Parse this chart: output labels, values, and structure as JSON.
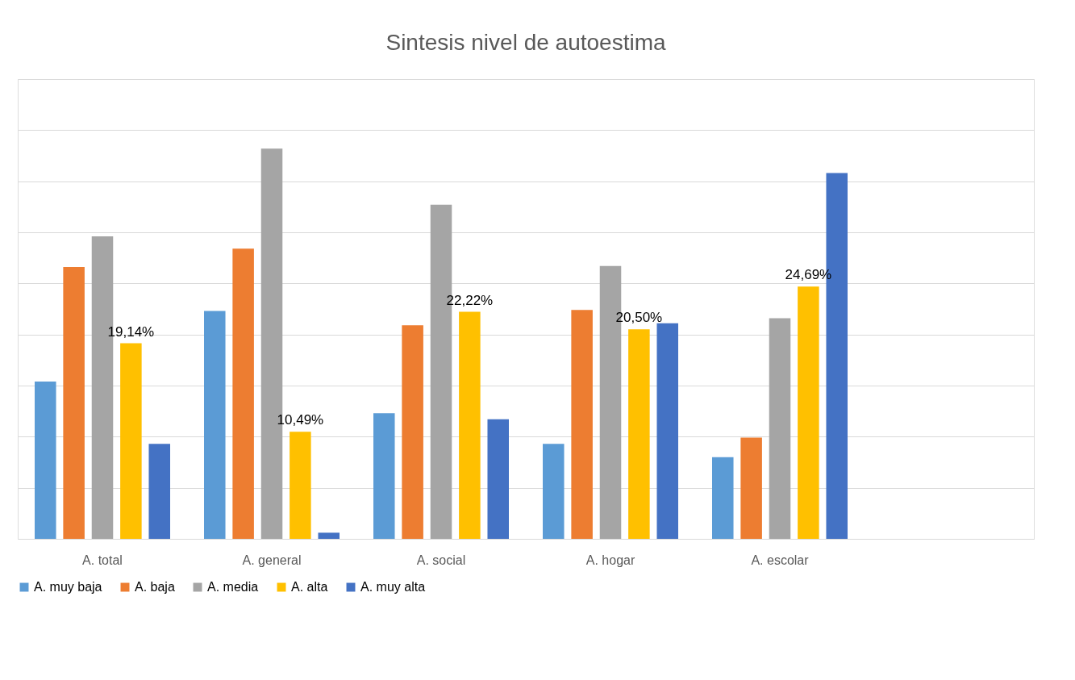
{
  "chart_data": {
    "type": "bar",
    "title": "Sintesis nivel de autoestima",
    "categories": [
      "A. total",
      "A. general",
      "A. social",
      "A. hogar",
      "A. escolar",
      null
    ],
    "series": [
      {
        "name": "A. muy baja",
        "color": "#5b9bd5",
        "values": [
          15.4,
          22.3,
          12.3,
          9.3,
          8.0,
          null
        ]
      },
      {
        "name": "A. baja",
        "color": "#ed7d31",
        "values": [
          26.6,
          28.4,
          20.9,
          22.4,
          9.9,
          null
        ]
      },
      {
        "name": "A. media",
        "color": "#a5a5a5",
        "values": [
          29.6,
          38.2,
          32.7,
          26.7,
          21.6,
          null
        ]
      },
      {
        "name": "A. alta",
        "color": "#ffc000",
        "values": [
          19.14,
          10.49,
          22.22,
          20.5,
          24.69,
          null
        ],
        "value_labels": [
          "19,14%",
          "10,49%",
          "22,22%",
          "20,50%",
          "24,69%",
          null
        ]
      },
      {
        "name": "A. muy alta",
        "color": "#4472c4",
        "values": [
          9.3,
          0.6,
          11.7,
          21.1,
          35.8,
          null
        ]
      }
    ],
    "ylim": [
      0,
      45
    ],
    "yticks": [
      {
        "value": 0,
        "label": null
      },
      {
        "value": 5,
        "label": null
      },
      {
        "value": 10,
        "label": null
      },
      {
        "value": 15,
        "label": null
      },
      {
        "value": 20,
        "label": null
      },
      {
        "value": 25,
        "label": null
      },
      {
        "value": 30,
        "label": null
      },
      {
        "value": 35,
        "label": null
      },
      {
        "value": 40,
        "label": null
      },
      {
        "value": 45,
        "label": null
      }
    ],
    "grid": "y",
    "legend": "bottom",
    "tick_labels": "x"
  }
}
